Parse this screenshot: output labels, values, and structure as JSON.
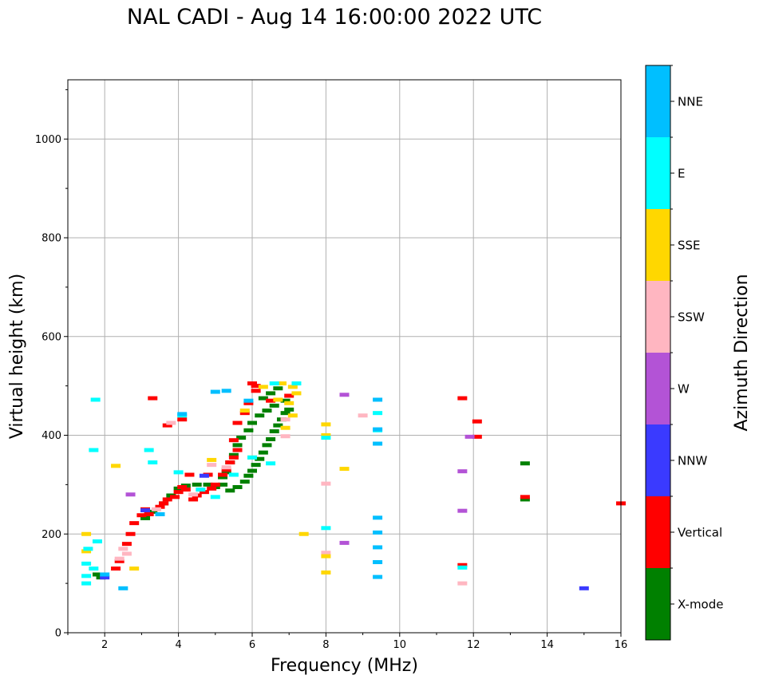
{
  "chart_data": {
    "type": "scatter",
    "title": "NAL CADI - Aug 14 16:00:00 2022 UTC",
    "xlabel": "Frequency (MHz)",
    "ylabel": "Virtual height (km)",
    "xlim": [
      1,
      16
    ],
    "ylim": [
      0,
      1120
    ],
    "xticks": [
      2,
      4,
      6,
      8,
      10,
      12,
      14,
      16
    ],
    "yticks": [
      0,
      200,
      400,
      600,
      800,
      1000
    ],
    "grid": true,
    "colorbar": {
      "label": "Azimuth Direction",
      "categories": [
        {
          "name": "X-mode",
          "color": "#008000"
        },
        {
          "name": "Vertical",
          "color": "#ff0000"
        },
        {
          "name": "NNW",
          "color": "#3a3aff"
        },
        {
          "name": "W",
          "color": "#b353d6"
        },
        {
          "name": "SSW",
          "color": "#ffb6c1"
        },
        {
          "name": "SSE",
          "color": "#ffd700"
        },
        {
          "name": "E",
          "color": "#00ffff"
        },
        {
          "name": "NNE",
          "color": "#00bfff"
        }
      ]
    },
    "series": [
      {
        "name": "X-mode",
        "color": "#008000",
        "points": [
          [
            1.8,
            118
          ],
          [
            1.9,
            112
          ],
          [
            3.1,
            232
          ],
          [
            3.3,
            245
          ],
          [
            3.6,
            262
          ],
          [
            3.8,
            278
          ],
          [
            4.0,
            292
          ],
          [
            4.2,
            298
          ],
          [
            4.5,
            300
          ],
          [
            4.8,
            300
          ],
          [
            5.0,
            295
          ],
          [
            5.2,
            300
          ],
          [
            5.4,
            288
          ],
          [
            5.6,
            295
          ],
          [
            5.8,
            306
          ],
          [
            5.9,
            318
          ],
          [
            6.0,
            328
          ],
          [
            6.1,
            340
          ],
          [
            6.2,
            352
          ],
          [
            6.3,
            365
          ],
          [
            6.4,
            380
          ],
          [
            6.5,
            392
          ],
          [
            6.6,
            408
          ],
          [
            6.7,
            420
          ],
          [
            6.8,
            432
          ],
          [
            6.9,
            445
          ],
          [
            7.0,
            452
          ],
          [
            6.3,
            475
          ],
          [
            6.5,
            485
          ],
          [
            6.7,
            495
          ],
          [
            6.9,
            470
          ],
          [
            6.6,
            460
          ],
          [
            6.4,
            450
          ],
          [
            6.2,
            440
          ],
          [
            6.0,
            425
          ],
          [
            5.9,
            410
          ],
          [
            5.7,
            395
          ],
          [
            5.6,
            380
          ],
          [
            5.5,
            360
          ],
          [
            5.4,
            345
          ],
          [
            5.3,
            325
          ],
          [
            5.2,
            315
          ],
          [
            13.4,
            343
          ],
          [
            13.4,
            270
          ]
        ]
      },
      {
        "name": "Vertical",
        "color": "#ff0000",
        "points": [
          [
            2.3,
            130
          ],
          [
            2.4,
            145
          ],
          [
            2.6,
            180
          ],
          [
            2.7,
            200
          ],
          [
            2.8,
            222
          ],
          [
            3.0,
            238
          ],
          [
            3.1,
            250
          ],
          [
            3.2,
            240
          ],
          [
            3.5,
            255
          ],
          [
            3.6,
            262
          ],
          [
            3.7,
            270
          ],
          [
            3.9,
            275
          ],
          [
            4.0,
            285
          ],
          [
            4.1,
            295
          ],
          [
            4.2,
            290
          ],
          [
            4.4,
            270
          ],
          [
            4.5,
            278
          ],
          [
            4.7,
            285
          ],
          [
            4.9,
            292
          ],
          [
            5.0,
            300
          ],
          [
            5.2,
            320
          ],
          [
            5.3,
            330
          ],
          [
            5.4,
            345
          ],
          [
            5.5,
            355
          ],
          [
            5.6,
            370
          ],
          [
            5.5,
            390
          ],
          [
            5.6,
            425
          ],
          [
            5.8,
            445
          ],
          [
            5.9,
            465
          ],
          [
            6.1,
            490
          ],
          [
            6.1,
            500
          ],
          [
            6.0,
            505
          ],
          [
            6.5,
            470
          ],
          [
            7.0,
            480
          ],
          [
            3.7,
            420
          ],
          [
            4.1,
            432
          ],
          [
            3.3,
            475
          ],
          [
            11.7,
            137
          ],
          [
            11.7,
            475
          ],
          [
            12.1,
            428
          ],
          [
            12.1,
            397
          ],
          [
            13.4,
            275
          ],
          [
            16.0,
            262
          ],
          [
            4.3,
            320
          ],
          [
            4.8,
            320
          ]
        ]
      },
      {
        "name": "NNW",
        "color": "#3a3aff",
        "points": [
          [
            2.0,
            112
          ],
          [
            3.1,
            248
          ],
          [
            15.0,
            90
          ],
          [
            4.7,
            318
          ]
        ]
      },
      {
        "name": "W",
        "color": "#b353d6",
        "points": [
          [
            2.7,
            280
          ],
          [
            11.7,
            247
          ],
          [
            11.7,
            327
          ],
          [
            8.5,
            482
          ],
          [
            8.5,
            182
          ],
          [
            11.9,
            397
          ]
        ]
      },
      {
        "name": "SSW",
        "color": "#ffb6c1",
        "points": [
          [
            2.4,
            150
          ],
          [
            2.5,
            170
          ],
          [
            2.6,
            160
          ],
          [
            3.4,
            250
          ],
          [
            4.4,
            280
          ],
          [
            4.9,
            340
          ],
          [
            5.3,
            335
          ],
          [
            6.9,
            398
          ],
          [
            6.9,
            432
          ],
          [
            9.0,
            440
          ],
          [
            8.0,
            302
          ],
          [
            8.0,
            162
          ],
          [
            11.7,
            100
          ],
          [
            3.8,
            425
          ]
        ]
      },
      {
        "name": "SSE",
        "color": "#ffd700",
        "points": [
          [
            1.5,
            200
          ],
          [
            1.5,
            165
          ],
          [
            2.3,
            338
          ],
          [
            2.8,
            130
          ],
          [
            6.3,
            498
          ],
          [
            6.8,
            505
          ],
          [
            7.1,
            498
          ],
          [
            7.2,
            485
          ],
          [
            6.7,
            472
          ],
          [
            7.0,
            465
          ],
          [
            7.1,
            440
          ],
          [
            6.9,
            415
          ],
          [
            8.0,
            400
          ],
          [
            8.0,
            422
          ],
          [
            8.5,
            332
          ],
          [
            8.0,
            155
          ],
          [
            8.0,
            122
          ],
          [
            7.4,
            200
          ],
          [
            6.0,
            355
          ],
          [
            5.8,
            450
          ],
          [
            4.9,
            350
          ]
        ]
      },
      {
        "name": "E",
        "color": "#00ffff",
        "points": [
          [
            1.5,
            100
          ],
          [
            1.5,
            115
          ],
          [
            1.5,
            140
          ],
          [
            1.55,
            170
          ],
          [
            1.7,
            130
          ],
          [
            1.8,
            185
          ],
          [
            1.75,
            472
          ],
          [
            1.7,
            370
          ],
          [
            3.2,
            370
          ],
          [
            3.3,
            345
          ],
          [
            4.0,
            325
          ],
          [
            4.6,
            290
          ],
          [
            5.0,
            275
          ],
          [
            5.5,
            320
          ],
          [
            6.0,
            355
          ],
          [
            6.5,
            343
          ],
          [
            7.2,
            505
          ],
          [
            8.0,
            212
          ],
          [
            8.0,
            395
          ],
          [
            9.4,
            445
          ],
          [
            9.4,
            410
          ],
          [
            11.7,
            132
          ],
          [
            6.6,
            505
          ],
          [
            4.1,
            440
          ]
        ]
      },
      {
        "name": "NNE",
        "color": "#00bfff",
        "points": [
          [
            2.0,
            118
          ],
          [
            2.5,
            90
          ],
          [
            5.0,
            488
          ],
          [
            5.3,
            490
          ],
          [
            5.9,
            470
          ],
          [
            9.4,
            383
          ],
          [
            9.4,
            412
          ],
          [
            9.4,
            472
          ],
          [
            9.4,
            233
          ],
          [
            9.4,
            203
          ],
          [
            9.4,
            173
          ],
          [
            9.4,
            143
          ],
          [
            9.4,
            113
          ],
          [
            4.1,
            443
          ],
          [
            3.5,
            240
          ]
        ]
      }
    ]
  }
}
